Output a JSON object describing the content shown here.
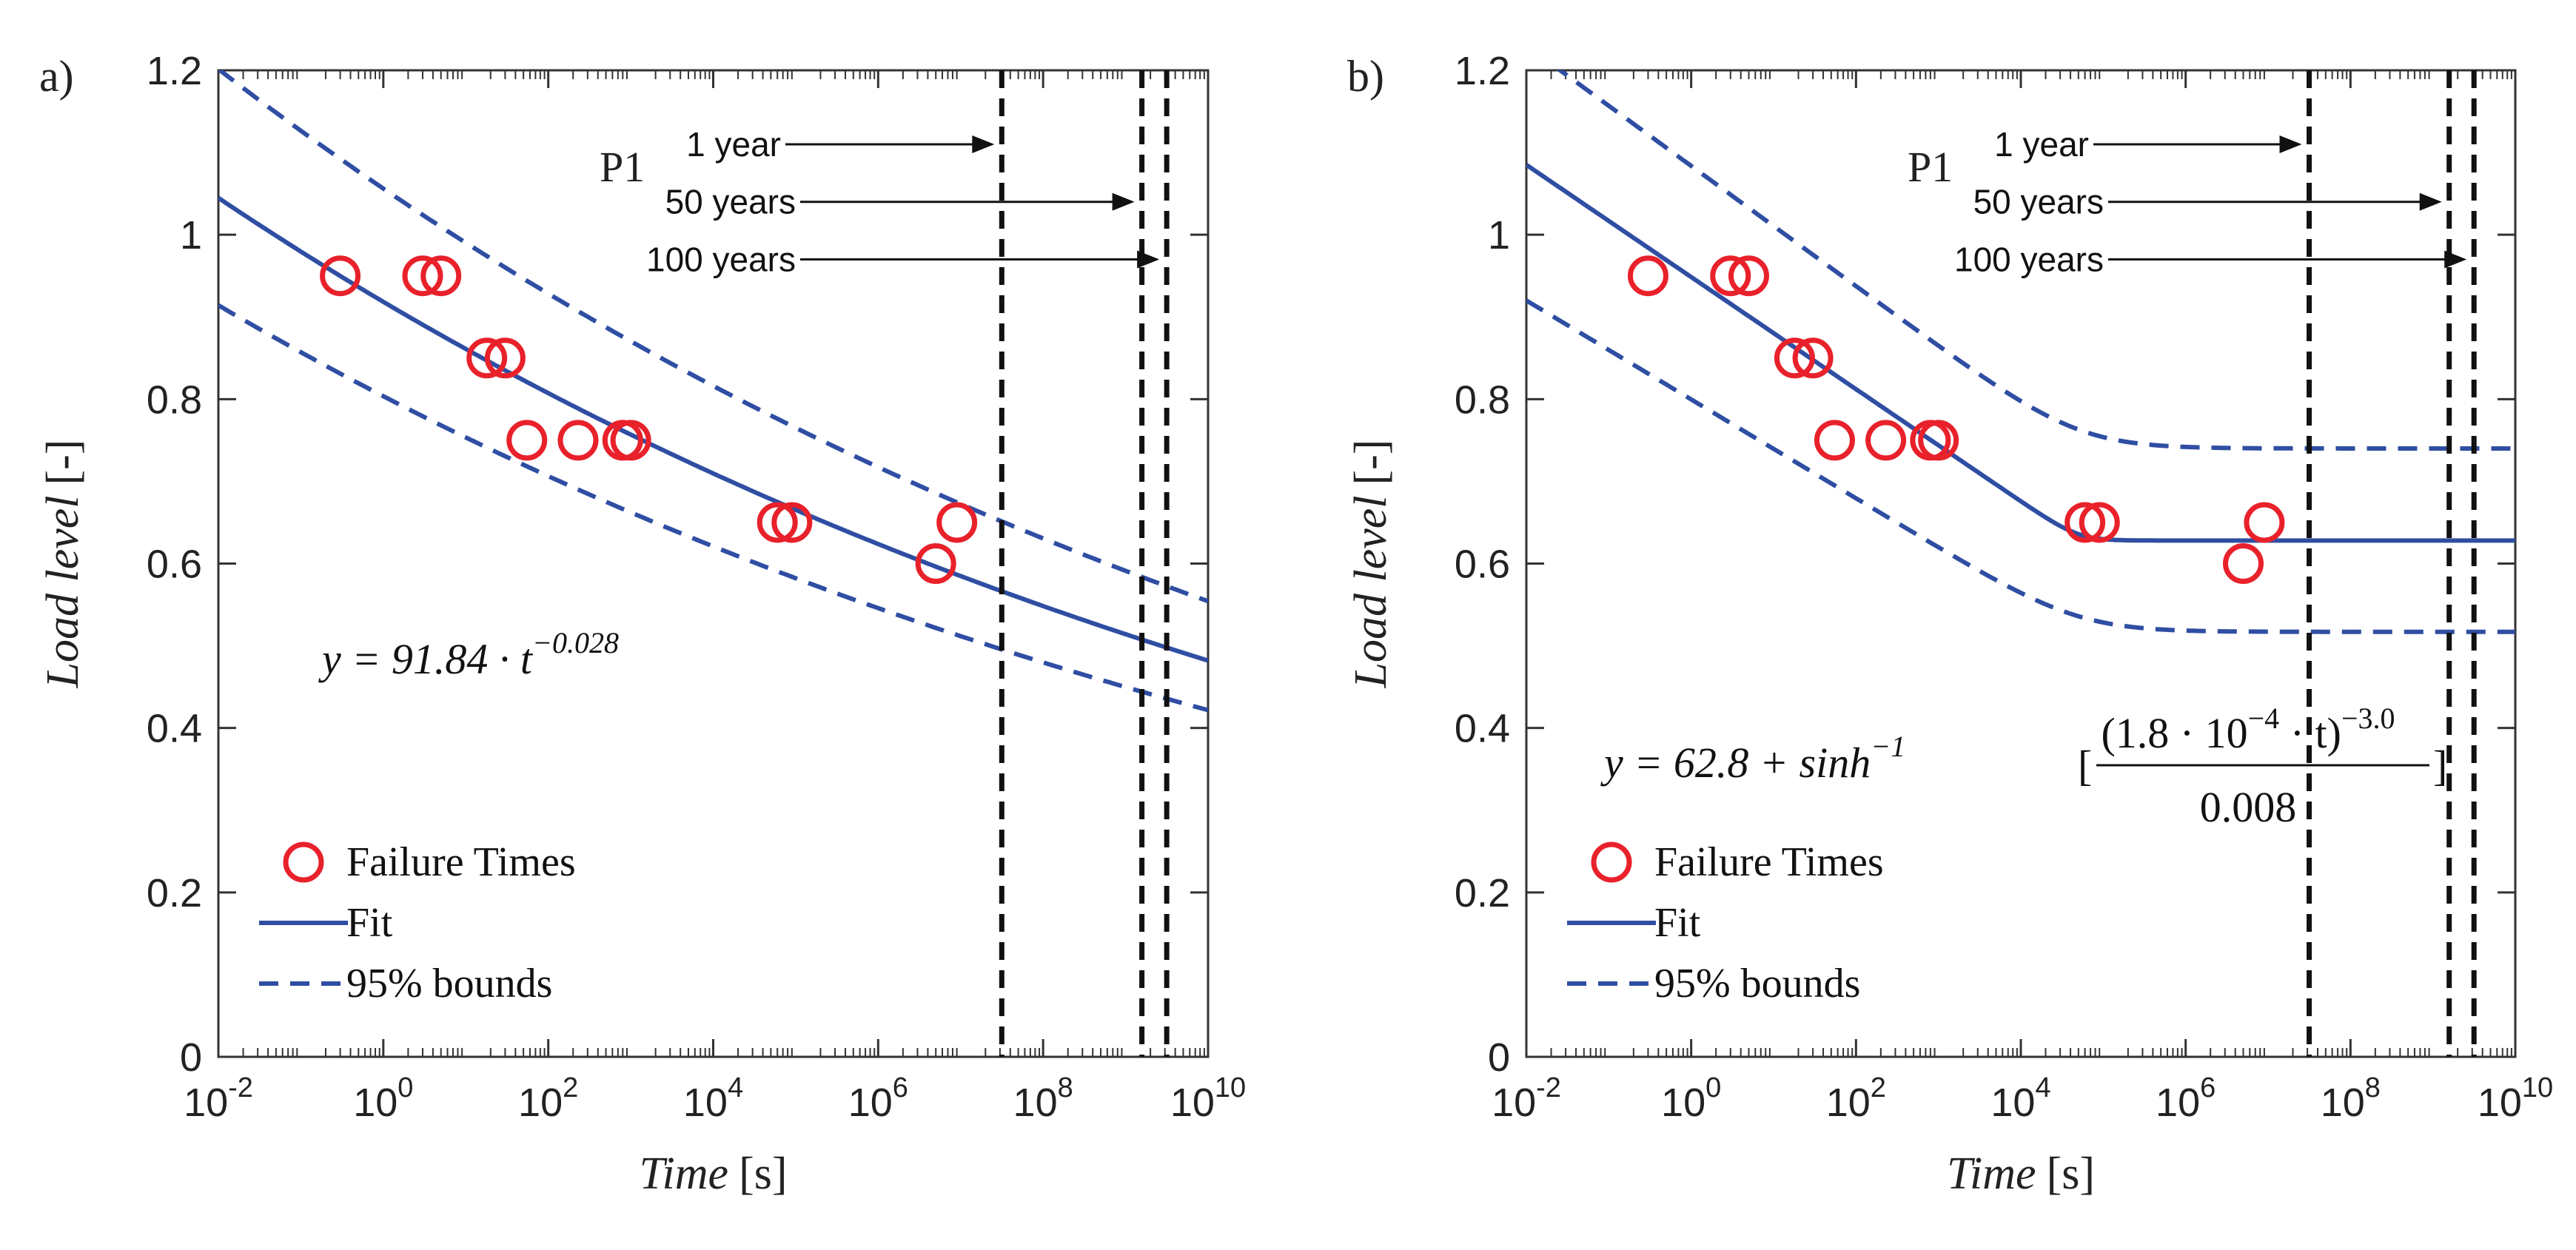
{
  "chart_data": [
    {
      "type": "scatter",
      "panel_label": "a)",
      "annotation": "P1",
      "xlabel": "Time",
      "xunit": "[s]",
      "ylabel": "Load level",
      "yunit": "[-]",
      "xscale": "log",
      "xlim": [
        0.01,
        10000000000
      ],
      "ylim": [
        0,
        1.2
      ],
      "x_ticks": [
        {
          "base": "10",
          "exp": "-2",
          "value": 0.01
        },
        {
          "base": "10",
          "exp": "0",
          "value": 1
        },
        {
          "base": "10",
          "exp": "2",
          "value": 100
        },
        {
          "base": "10",
          "exp": "4",
          "value": 10000
        },
        {
          "base": "10",
          "exp": "6",
          "value": 1000000
        },
        {
          "base": "10",
          "exp": "8",
          "value": 100000000
        },
        {
          "base": "10",
          "exp": "10",
          "value": 10000000000
        }
      ],
      "y_ticks": [
        {
          "label": "0",
          "value": 0
        },
        {
          "label": "0.2",
          "value": 0.2
        },
        {
          "label": "0.4",
          "value": 0.4
        },
        {
          "label": "0.6",
          "value": 0.6
        },
        {
          "label": "0.8",
          "value": 0.8
        },
        {
          "label": "1",
          "value": 1.0
        },
        {
          "label": "1.2",
          "value": 1.2
        }
      ],
      "failure_times": [
        {
          "x": 0.3,
          "y": 0.95
        },
        {
          "x": 3.0,
          "y": 0.95
        },
        {
          "x": 5.0,
          "y": 0.95
        },
        {
          "x": 18,
          "y": 0.85
        },
        {
          "x": 30,
          "y": 0.85
        },
        {
          "x": 55,
          "y": 0.75
        },
        {
          "x": 230,
          "y": 0.75
        },
        {
          "x": 800,
          "y": 0.75
        },
        {
          "x": 1000,
          "y": 0.75
        },
        {
          "x": 60000,
          "y": 0.65
        },
        {
          "x": 90000,
          "y": 0.65
        },
        {
          "x": 5000000,
          "y": 0.6
        },
        {
          "x": 9000000,
          "y": 0.65
        }
      ],
      "fit": {
        "model": "power",
        "a": 0.9184,
        "b": -0.028
      },
      "bounds": {
        "upper_offset": 0.12,
        "lower_offset": 0.1
      },
      "equation": {
        "lhs": "y = 91.84 · t",
        "exponent": "−0.028"
      },
      "time_markers": [
        {
          "label": "1 year",
          "x": 31536000
        },
        {
          "label": "50 years",
          "x": 1576800000
        },
        {
          "label": "100 years",
          "x": 3153600000
        }
      ],
      "legend": {
        "placement": "bottom-left",
        "entries": [
          {
            "label": "Failure Times",
            "style": "circle"
          },
          {
            "label": "Fit",
            "style": "solid"
          },
          {
            "label": "95% bounds",
            "style": "dashed"
          }
        ]
      },
      "colors": {
        "marker": "#e8212b",
        "fit": "#2f4ea3",
        "marker_line": "#111111"
      }
    },
    {
      "type": "scatter",
      "panel_label": "b)",
      "annotation": "P1",
      "xlabel": "Time",
      "xunit": "[s]",
      "ylabel": "Load level",
      "yunit": "[-]",
      "xscale": "log",
      "xlim": [
        0.01,
        10000000000
      ],
      "ylim": [
        0,
        1.2
      ],
      "x_ticks": [
        {
          "base": "10",
          "exp": "-2",
          "value": 0.01
        },
        {
          "base": "10",
          "exp": "0",
          "value": 1
        },
        {
          "base": "10",
          "exp": "2",
          "value": 100
        },
        {
          "base": "10",
          "exp": "4",
          "value": 10000
        },
        {
          "base": "10",
          "exp": "6",
          "value": 1000000
        },
        {
          "base": "10",
          "exp": "8",
          "value": 100000000
        },
        {
          "base": "10",
          "exp": "10",
          "value": 10000000000
        }
      ],
      "y_ticks": [
        {
          "label": "0",
          "value": 0
        },
        {
          "label": "0.2",
          "value": 0.2
        },
        {
          "label": "0.4",
          "value": 0.4
        },
        {
          "label": "0.6",
          "value": 0.6
        },
        {
          "label": "0.8",
          "value": 0.8
        },
        {
          "label": "1",
          "value": 1.0
        },
        {
          "label": "1.2",
          "value": 1.2
        }
      ],
      "failure_times": [
        {
          "x": 0.3,
          "y": 0.95
        },
        {
          "x": 3.0,
          "y": 0.95
        },
        {
          "x": 5.0,
          "y": 0.95
        },
        {
          "x": 18,
          "y": 0.85
        },
        {
          "x": 30,
          "y": 0.85
        },
        {
          "x": 55,
          "y": 0.75
        },
        {
          "x": 230,
          "y": 0.75
        },
        {
          "x": 800,
          "y": 0.75
        },
        {
          "x": 1000,
          "y": 0.75
        },
        {
          "x": 60000,
          "y": 0.65
        },
        {
          "x": 90000,
          "y": 0.65
        },
        {
          "x": 5000000,
          "y": 0.6
        },
        {
          "x": 9000000,
          "y": 0.65
        }
      ],
      "fit": {
        "model": "sinh",
        "plateau": 0.628,
        "slope_start": 1.085,
        "knee_x": 50000
      },
      "bounds": {
        "upper_plateau": 0.74,
        "lower_plateau": 0.517,
        "upper_start": 1.23,
        "lower_start": 0.92
      },
      "equation": {
        "lhs": "y = 62.8 + sinh",
        "inv": "−1",
        "numerator": "(1.8 · 10",
        "num_exp": "−4",
        "num_rest": " · t)",
        "num_pow": "−3.0",
        "denominator": "0.008"
      },
      "time_markers": [
        {
          "label": "1 year",
          "x": 31536000
        },
        {
          "label": "50 years",
          "x": 1576800000
        },
        {
          "label": "100 years",
          "x": 3153600000
        }
      ],
      "legend": {
        "placement": "bottom-left",
        "entries": [
          {
            "label": "Failure Times",
            "style": "circle"
          },
          {
            "label": "Fit",
            "style": "solid"
          },
          {
            "label": "95% bounds",
            "style": "dashed"
          }
        ]
      },
      "colors": {
        "marker": "#e8212b",
        "fit": "#2f4ea3",
        "marker_line": "#111111"
      }
    }
  ]
}
